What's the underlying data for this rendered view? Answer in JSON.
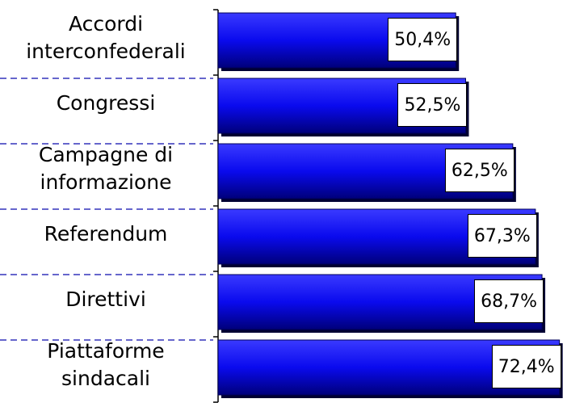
{
  "chart_data": {
    "type": "barh",
    "categories": [
      "Accordi interconfederali",
      "Congressi",
      "Campagne di informazione",
      "Referendum",
      "Direttivi",
      "Piattaforme sindacali"
    ],
    "values": [
      50.4,
      52.5,
      62.5,
      67.3,
      68.7,
      72.4
    ],
    "value_labels": [
      "50,4%",
      "52,5%",
      "62,5%",
      "67,3%",
      "68,7%",
      "72,4%"
    ],
    "color": "#0a0aff",
    "xlim": [
      0,
      74
    ]
  }
}
